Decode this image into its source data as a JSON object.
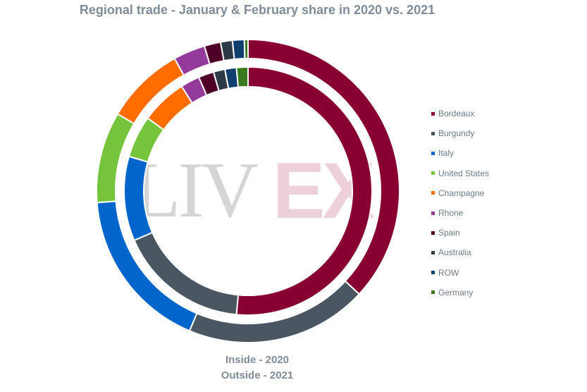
{
  "chart_data": {
    "type": "pie",
    "subtype": "nested-donut",
    "title": "Regional trade - January & February share in 2020 vs. 2021",
    "categories": [
      "Bordeaux",
      "Burgundy",
      "Italy",
      "United States",
      "Champagne",
      "Rhone",
      "Spain",
      "Australia",
      "ROW",
      "Germany"
    ],
    "colors": [
      "#870031",
      "#4a5661",
      "#0066cc",
      "#76c43b",
      "#ff6c00",
      "#943a9a",
      "#4f0026",
      "#2d3a45",
      "#0f3f6e",
      "#3a7a1f"
    ],
    "series": [
      {
        "ring": "inner",
        "year": "2020",
        "values": [
          51.5,
          17.0,
          11.0,
          5.5,
          6.0,
          2.5,
          2.0,
          1.5,
          1.5,
          1.5
        ]
      },
      {
        "ring": "outer",
        "year": "2021",
        "values": [
          38.0,
          20.0,
          18.0,
          10.0,
          8.7,
          3.5,
          1.8,
          1.3,
          1.3,
          0.4
        ]
      }
    ],
    "legend_position": "right",
    "watermark": {
      "left": "LIV",
      "right": "EX"
    }
  },
  "footnotes": {
    "inside": "Inside - 2020",
    "outside": "Outside - 2021"
  }
}
